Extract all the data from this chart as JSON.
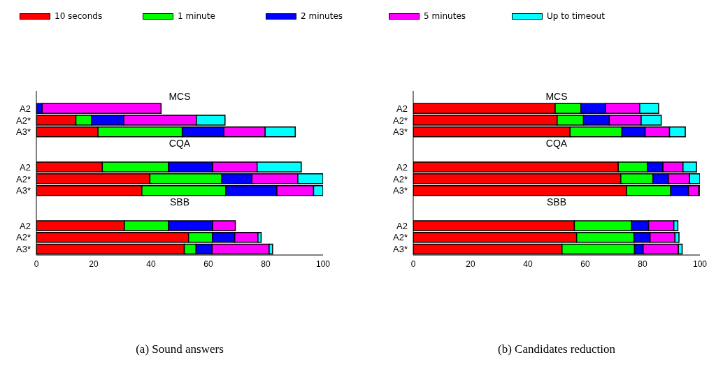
{
  "chart_data": [
    {
      "type": "bar",
      "orientation": "horizontal",
      "stacked": true,
      "title": "(a) Sound answers",
      "legend": "top",
      "categories": [
        null,
        "A2",
        "A2*",
        "A3*",
        null,
        null,
        "A2",
        "A2*",
        "A3*",
        null,
        null,
        "A2",
        "A2*",
        "A3*"
      ],
      "annotations": [
        "MCS",
        "CQA",
        "SBB"
      ],
      "xlim": [
        0,
        100
      ],
      "xticks": [
        0,
        20,
        40,
        60,
        80,
        100
      ],
      "series": [
        {
          "name": "10 seconds",
          "color": "#ff0000",
          "values": [
            null,
            null,
            13.8,
            21.5,
            null,
            null,
            23.0,
            39.6,
            36.8,
            null,
            null,
            30.7,
            53.1,
            51.6
          ]
        },
        {
          "name": "1 minute",
          "color": "#00ff00",
          "values": [
            null,
            null,
            5.5,
            29.4,
            null,
            null,
            23.1,
            25.1,
            29.3,
            null,
            null,
            15.4,
            8.3,
            4.1
          ]
        },
        {
          "name": "2 minutes",
          "color": "#0000ff",
          "values": [
            null,
            2,
            11.2,
            14.5,
            null,
            null,
            15.4,
            10.5,
            17.8,
            null,
            null,
            15.4,
            7.8,
            5.6
          ]
        },
        {
          "name": "5 minutes",
          "color": "#ff00ff",
          "values": [
            null,
            41.5,
            25.3,
            14.4,
            null,
            null,
            15.5,
            16.0,
            12.8,
            null,
            null,
            7.9,
            8.1,
            19.9
          ]
        },
        {
          "name": "Up to timeout",
          "color": "#00ffff",
          "values": [
            null,
            null,
            10.0,
            10.5,
            null,
            null,
            15.4,
            8.8,
            3.3,
            null,
            null,
            null,
            1.1,
            1.2
          ]
        }
      ]
    },
    {
      "type": "bar",
      "orientation": "horizontal",
      "stacked": true,
      "title": "(b) Candidates reduction",
      "categories": [
        null,
        "A2",
        "A2*",
        "A3*",
        null,
        null,
        "A2",
        "A2*",
        "A3*",
        null,
        null,
        "A2",
        "A2*",
        "A3*"
      ],
      "annotations": [
        "MCS",
        "CQA",
        "SBB"
      ],
      "xlim": [
        0,
        100
      ],
      "xticks": [
        0,
        20,
        40,
        60,
        80,
        100
      ],
      "series": [
        {
          "color": "#ff0000",
          "values": [
            null,
            49.5,
            50.2,
            54.7,
            null,
            null,
            71.5,
            72.4,
            74.4,
            null,
            null,
            56.2,
            57.0,
            51.9
          ]
        },
        {
          "color": "#00ff00",
          "values": [
            null,
            9.0,
            9.2,
            18.1,
            null,
            null,
            10.2,
            11.2,
            15.4,
            null,
            null,
            20.0,
            20.0,
            25.3
          ]
        },
        {
          "color": "#0000ff",
          "values": [
            null,
            8.6,
            9.0,
            8.1,
            null,
            null,
            5.4,
            5.4,
            6.2,
            null,
            null,
            5.9,
            5.6,
            3.0
          ]
        },
        {
          "color": "#ff00ff",
          "values": [
            null,
            11.9,
            11.1,
            8.5,
            null,
            null,
            7.0,
            7.4,
            3.6,
            null,
            null,
            8.8,
            8.7,
            12.3
          ]
        },
        {
          "color": "#00ffff",
          "values": [
            null,
            6.6,
            7.0,
            5.5,
            null,
            null,
            4.7,
            3.6,
            0.4,
            null,
            null,
            1.4,
            1.4,
            1.3
          ]
        }
      ]
    }
  ]
}
